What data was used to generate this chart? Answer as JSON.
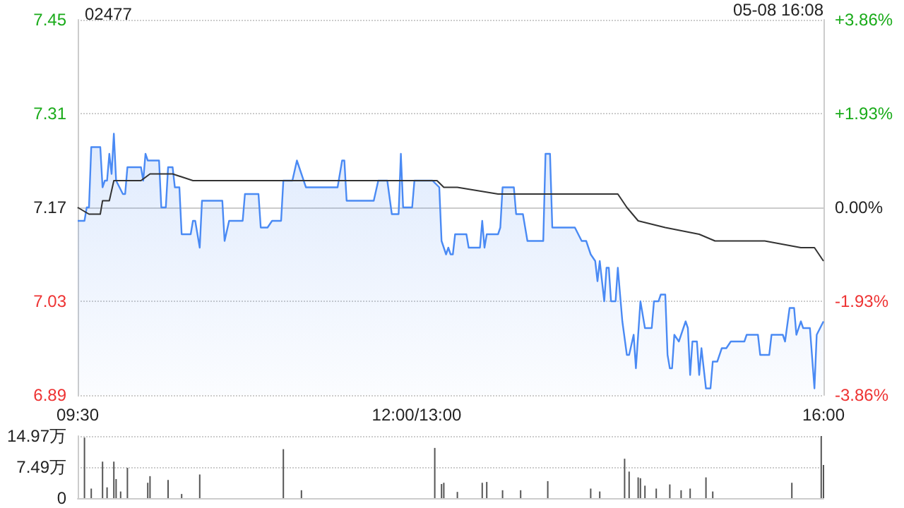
{
  "chart_data": [
    {
      "type": "area",
      "title": "02477",
      "annotations": [
        "05-08 16:08"
      ],
      "categories": [
        "09:30",
        null,
        null,
        null,
        null,
        null,
        null,
        null,
        null,
        null,
        null,
        null,
        null,
        null,
        null,
        null,
        null,
        null,
        null,
        null,
        null,
        null,
        null,
        null,
        null,
        null,
        null,
        null,
        null,
        null,
        null,
        null,
        null,
        null,
        null,
        null,
        null,
        null,
        null,
        null,
        null,
        null,
        null,
        null,
        null,
        null,
        null,
        null,
        null,
        null,
        null,
        null,
        null,
        null,
        null,
        null,
        null,
        null,
        null,
        null,
        null,
        null,
        null,
        null,
        null,
        null,
        null,
        null,
        null,
        null,
        null,
        null,
        null,
        null,
        null,
        null,
        null,
        null,
        null,
        null,
        null,
        null,
        null,
        null,
        null,
        null,
        null,
        null,
        null,
        null,
        null,
        null,
        null,
        null,
        null,
        null,
        null,
        null,
        null,
        null,
        null,
        null,
        null,
        null,
        null,
        null,
        null,
        null,
        null,
        null,
        null,
        null,
        null,
        null,
        null,
        null,
        null,
        null,
        null,
        null,
        null,
        null,
        null,
        null,
        null,
        null,
        null,
        null,
        null,
        null,
        null,
        null,
        null,
        null,
        null,
        null,
        null,
        null,
        null,
        null,
        null,
        null,
        null,
        null,
        null,
        null,
        null,
        null,
        null,
        null,
        "12:00/13:00",
        null,
        null,
        null,
        null,
        null,
        null,
        null,
        null,
        null,
        null,
        null,
        null,
        null,
        null,
        null,
        null,
        null,
        null,
        null,
        null,
        null,
        null,
        null,
        null,
        null,
        null,
        null,
        null,
        null,
        null,
        null,
        null,
        null,
        null,
        null,
        null,
        null,
        null,
        null,
        null,
        null,
        null,
        null,
        null,
        null,
        null,
        null,
        null,
        null,
        null,
        null,
        null,
        null,
        null,
        null,
        null,
        null,
        null,
        null,
        null,
        null,
        null,
        null,
        null,
        null,
        null,
        null,
        null,
        null,
        null,
        null,
        null,
        null,
        null,
        null,
        null,
        null,
        null,
        null,
        null,
        null,
        null,
        null,
        null,
        null,
        null,
        null,
        null,
        null,
        null,
        null,
        null,
        null,
        null,
        null,
        null,
        null,
        null,
        null,
        null,
        null,
        null,
        null,
        null,
        null,
        null,
        null,
        null,
        null,
        null,
        null,
        null,
        null,
        null,
        null,
        null,
        null,
        null,
        null,
        null,
        null,
        null,
        null,
        null,
        null,
        null,
        null,
        null,
        null,
        null,
        null,
        null,
        null,
        null,
        null,
        null,
        null,
        null,
        null,
        null,
        null,
        null,
        null,
        null,
        null,
        null,
        null,
        null,
        null,
        null,
        null,
        null,
        null,
        null,
        null,
        null,
        null,
        null,
        null,
        null,
        null,
        null,
        null,
        null,
        null,
        null,
        null,
        null,
        null,
        null,
        null,
        null,
        null,
        null,
        null,
        null,
        null,
        null,
        null,
        "16:00"
      ],
      "ylim": [
        6.89,
        7.45
      ],
      "yticks": [
        6.89,
        7.03,
        7.17,
        7.31,
        7.45
      ],
      "y2lim": [
        -3.86,
        3.86
      ],
      "y2ticks": [
        {
          "value": -3.86,
          "label": "-3.86%"
        },
        {
          "value": -1.93,
          "label": "-1.93%"
        },
        {
          "value": 0,
          "label": "0.00%"
        },
        {
          "value": 1.93,
          "label": "+1.93%"
        },
        {
          "value": 3.86,
          "label": "+3.86%"
        }
      ],
      "grid": true,
      "series": [
        {
          "color": "#4a8af4",
          "values": [
            7.15,
            null,
            null,
            7.15,
            7.17,
            7.17,
            7.26,
            null,
            null,
            null,
            7.26,
            7.2,
            7.21,
            7.21,
            7.25,
            7.22,
            7.28,
            7.21,
            null,
            null,
            7.19,
            7.19,
            7.23,
            null,
            null,
            null,
            null,
            null,
            7.23,
            7.21,
            7.25,
            7.24,
            null,
            null,
            null,
            null,
            7.24,
            7.17,
            null,
            7.17,
            7.23,
            null,
            7.23,
            7.2,
            null,
            7.2,
            7.13,
            null,
            null,
            null,
            7.13,
            7.15,
            7.15,
            null,
            7.11,
            7.18,
            null,
            null,
            null,
            null,
            null,
            null,
            null,
            null,
            7.18,
            7.12,
            null,
            7.15,
            null,
            null,
            null,
            null,
            null,
            7.15,
            7.19,
            null,
            null,
            null,
            null,
            null,
            7.19,
            7.14,
            null,
            null,
            7.14,
            null,
            7.15,
            null,
            null,
            null,
            7.15,
            7.21,
            null,
            null,
            null,
            7.21,
            null,
            7.24,
            null,
            7.22,
            null,
            7.2,
            null,
            null,
            null,
            null,
            null,
            null,
            null,
            null,
            null,
            null,
            null,
            null,
            null,
            7.2,
            null,
            7.24,
            7.24,
            7.18,
            null,
            null,
            null,
            null,
            null,
            null,
            null,
            null,
            null,
            null,
            null,
            7.18,
            null,
            7.21,
            null,
            null,
            null,
            7.21,
            null,
            7.16,
            null,
            null,
            7.16,
            7.25,
            7.17,
            null,
            null,
            null,
            7.17,
            7.21,
            7.21,
            null,
            null,
            null,
            null,
            null,
            null,
            7.21,
            null,
            null,
            7.2,
            7.12,
            null,
            7.1,
            7.11,
            7.1,
            7.1,
            7.13,
            null,
            null,
            null,
            null,
            7.13,
            7.11,
            null,
            null,
            null,
            null,
            7.11,
            7.15,
            7.11,
            7.13,
            null,
            null,
            null,
            null,
            7.13,
            7.14,
            7.2,
            null,
            null,
            null,
            null,
            7.2,
            7.16,
            null,
            null,
            7.16,
            null,
            7.12,
            null,
            null,
            null,
            null,
            null,
            null,
            7.12,
            7.25,
            null,
            7.25,
            7.14,
            null,
            null,
            null,
            null,
            null,
            null,
            null,
            null,
            null,
            7.14,
            null,
            null,
            7.12,
            null,
            7.12,
            null,
            7.1,
            null,
            7.09,
            7.06,
            7.09,
            null,
            7.03,
            7.08,
            7.08,
            7.03,
            null,
            7.03,
            7.08,
            null,
            7.0,
            null,
            6.95,
            6.95,
            null,
            6.98,
            6.93,
            null,
            7.03,
            null,
            6.99,
            null,
            null,
            6.99,
            7.03,
            null,
            7.03,
            7.04,
            null,
            7.04,
            6.95,
            6.93,
            6.93,
            6.98,
            null,
            6.97,
            6.98,
            null,
            7.0,
            6.99,
            6.92,
            6.97,
            6.97,
            6.97,
            6.92,
            6.96,
            null,
            6.9,
            null,
            6.9,
            6.94,
            null,
            6.94,
            null,
            6.96,
            null,
            6.96,
            null,
            6.97,
            null,
            null,
            null,
            null,
            null,
            6.97,
            6.98,
            null,
            null,
            null,
            null,
            6.98,
            6.95,
            null,
            null,
            null,
            6.95,
            6.98,
            null,
            null,
            null,
            null,
            6.98,
            6.97,
            null,
            7.02,
            null,
            7.02,
            6.98,
            null,
            7.0,
            6.99,
            null,
            null,
            6.99,
            null,
            6.9,
            6.98,
            null,
            null,
            7.0
          ]
        },
        {
          "type": "line",
          "color": "#333333",
          "values": [
            7.17,
            null,
            null,
            null,
            null,
            7.16,
            null,
            null,
            null,
            null,
            7.16,
            7.18,
            null,
            null,
            7.18,
            null,
            7.21,
            null,
            null,
            null,
            null,
            null,
            null,
            null,
            null,
            null,
            null,
            null,
            7.21,
            null,
            null,
            null,
            7.22,
            null,
            null,
            null,
            null,
            null,
            null,
            null,
            null,
            null,
            7.22,
            null,
            null,
            null,
            null,
            null,
            null,
            null,
            null,
            7.21,
            null,
            null,
            null,
            null,
            null,
            null,
            null,
            null,
            null,
            null,
            null,
            null,
            null,
            null,
            null,
            null,
            null,
            null,
            null,
            null,
            null,
            null,
            null,
            null,
            null,
            null,
            null,
            null,
            null,
            null,
            null,
            null,
            null,
            null,
            null,
            null,
            null,
            null,
            null,
            7.21,
            null,
            null,
            null,
            null,
            null,
            null,
            null,
            null,
            null,
            null,
            null,
            null,
            null,
            null,
            null,
            null,
            null,
            null,
            null,
            null,
            null,
            null,
            null,
            null,
            null,
            null,
            null,
            null,
            null,
            null,
            null,
            null,
            null,
            null,
            null,
            null,
            null,
            null,
            null,
            null,
            null,
            null,
            null,
            null,
            null,
            null,
            null,
            null,
            null,
            null,
            null,
            null,
            null,
            null,
            null,
            null,
            null,
            null,
            7.21,
            null,
            null,
            null,
            null,
            null,
            null,
            null,
            null,
            7.21,
            null,
            null,
            7.2,
            null,
            null,
            null,
            null,
            null,
            7.2,
            null,
            null,
            null,
            null,
            null,
            null,
            null,
            null,
            null,
            null,
            null,
            null,
            null,
            null,
            null,
            null,
            null,
            7.19,
            null,
            null,
            null,
            null,
            null,
            null,
            null,
            null,
            null,
            null,
            null,
            null,
            null,
            null,
            null,
            null,
            null,
            null,
            null,
            null,
            null,
            null,
            null,
            null,
            7.19,
            null,
            null,
            null,
            null,
            null,
            null,
            null,
            null,
            null,
            null,
            null,
            null,
            null,
            7.19,
            null,
            null,
            null,
            null,
            null,
            null,
            null,
            null,
            null,
            null,
            null,
            null,
            null,
            7.19,
            null,
            null,
            null,
            7.17,
            null,
            null,
            null,
            null,
            7.15,
            null,
            null,
            null,
            null,
            null,
            null,
            null,
            null,
            null,
            null,
            null,
            7.14,
            null,
            null,
            null,
            null,
            null,
            null,
            null,
            null,
            null,
            null,
            null,
            null,
            null,
            null,
            7.13,
            null,
            null,
            null,
            null,
            null,
            null,
            7.12,
            null,
            null,
            null,
            null,
            null,
            null,
            null,
            null,
            null,
            null,
            null,
            null,
            null,
            null,
            null,
            null,
            null,
            null,
            null,
            null,
            null,
            7.12,
            null,
            null,
            null,
            null,
            null,
            null,
            null,
            null,
            null,
            null,
            null,
            null,
            null,
            null,
            null,
            7.11,
            null,
            null,
            null,
            null,
            null,
            7.11,
            null,
            null,
            null,
            7.09
          ]
        }
      ]
    },
    {
      "type": "bar",
      "color": "#555555",
      "tick_labels": "y",
      "grid": "y",
      "categories": [
        null,
        null,
        null,
        null,
        null,
        null,
        null,
        null,
        null,
        null,
        null,
        null,
        null,
        null,
        null,
        null,
        null,
        null,
        null,
        null,
        null,
        null,
        null,
        null,
        null,
        null,
        null,
        null,
        null,
        null,
        null,
        null,
        null,
        null,
        null,
        null,
        null,
        null,
        null,
        null,
        null,
        null,
        null,
        null,
        null,
        null,
        null,
        null,
        null,
        null,
        null,
        null,
        null,
        null,
        null,
        null,
        null,
        null,
        null,
        null,
        null,
        null,
        null,
        null,
        null,
        null,
        null,
        null,
        null,
        null,
        null,
        null,
        null,
        null,
        null,
        null,
        null,
        null,
        null,
        null,
        null,
        null,
        null,
        null,
        null,
        null,
        null,
        null,
        null,
        null,
        null,
        null,
        null,
        null,
        null,
        null,
        null,
        null,
        null,
        null,
        null,
        null,
        null,
        null,
        null,
        null,
        null,
        null,
        null,
        null,
        null,
        null,
        null,
        null,
        null,
        null,
        null,
        null,
        null,
        null,
        null,
        null,
        null,
        null,
        null,
        null,
        null,
        null,
        null,
        null,
        null,
        null,
        null,
        null,
        null,
        null,
        null,
        null,
        null,
        null,
        null,
        null,
        null,
        null,
        null,
        null,
        null,
        null,
        null,
        null,
        null,
        null,
        null,
        null,
        null,
        null,
        null,
        null,
        null,
        null,
        null,
        null,
        null,
        null,
        null,
        null,
        null,
        null,
        null,
        null,
        null,
        null,
        null,
        null,
        null,
        null,
        null,
        null,
        null,
        null,
        null,
        null,
        null,
        null,
        null,
        null,
        null,
        null,
        null,
        null,
        null,
        null,
        null,
        null,
        null,
        null,
        null,
        null,
        null,
        null,
        null,
        null,
        null,
        null,
        null,
        null,
        null,
        null,
        null,
        null,
        null,
        null,
        null,
        null,
        null,
        null,
        null,
        null,
        null,
        null,
        null,
        null,
        null,
        null,
        null,
        null,
        null,
        null,
        null,
        null,
        null,
        null,
        null,
        null,
        null,
        null,
        null,
        null,
        null,
        null,
        null,
        null,
        null,
        null,
        null,
        null,
        null,
        null,
        null,
        null,
        null,
        null,
        null,
        null,
        null,
        null,
        null,
        null,
        null,
        null,
        null,
        null,
        null,
        null,
        null,
        null,
        null,
        null,
        null,
        null,
        null,
        null,
        null,
        null,
        null,
        null,
        null,
        null,
        null,
        null,
        null,
        null,
        null,
        null,
        null,
        null,
        null,
        null,
        null,
        null,
        null,
        null,
        null,
        null,
        null,
        null,
        null,
        null,
        null,
        null,
        null,
        null,
        null,
        null,
        null,
        null,
        null,
        null,
        null,
        null,
        null,
        null,
        null,
        null,
        null,
        null,
        null,
        null,
        null,
        null,
        null,
        null,
        null,
        null,
        null,
        null,
        null,
        null,
        null,
        null,
        null
      ],
      "ylim": [
        0,
        14.97
      ],
      "yticks": [
        {
          "value": 0,
          "label": "0"
        },
        {
          "value": 7.49,
          "label": "7.49万"
        },
        {
          "value": 14.97,
          "label": "14.97万"
        }
      ],
      "values": [
        null,
        null,
        null,
        14.6,
        null,
        null,
        2.3,
        null,
        null,
        null,
        null,
        8.8,
        null,
        2.6,
        null,
        null,
        8.8,
        4.6,
        null,
        1.6,
        null,
        null,
        7.3,
        null,
        null,
        null,
        null,
        null,
        null,
        null,
        null,
        3.7,
        5.3,
        null,
        null,
        null,
        null,
        null,
        null,
        null,
        4.4,
        null,
        null,
        null,
        null,
        null,
        1.0,
        null,
        null,
        null,
        null,
        null,
        null,
        null,
        5.7,
        null,
        null,
        null,
        null,
        null,
        null,
        null,
        null,
        null,
        null,
        null,
        null,
        null,
        null,
        null,
        null,
        null,
        null,
        null,
        null,
        null,
        null,
        null,
        null,
        null,
        null,
        null,
        null,
        null,
        null,
        null,
        null,
        null,
        null,
        null,
        null,
        11.8,
        null,
        null,
        null,
        null,
        null,
        null,
        null,
        1.9,
        null,
        null,
        null,
        null,
        null,
        null,
        null,
        null,
        null,
        null,
        null,
        null,
        null,
        null,
        null,
        null,
        null,
        null,
        null,
        null,
        null,
        null,
        null,
        null,
        null,
        null,
        null,
        null,
        null,
        null,
        null,
        null,
        null,
        null,
        null,
        null,
        null,
        null,
        null,
        null,
        null,
        null,
        null,
        null,
        null,
        null,
        null,
        null,
        null,
        null,
        null,
        null,
        null,
        null,
        null,
        null,
        null,
        null,
        12.1,
        null,
        null,
        3.4,
        3.7,
        null,
        null,
        null,
        null,
        null,
        1.5,
        null,
        null,
        null,
        null,
        null,
        null,
        null,
        null,
        null,
        null,
        3.7,
        null,
        3.9,
        null,
        null,
        null,
        null,
        null,
        null,
        1.9,
        null,
        null,
        null,
        null,
        null,
        null,
        null,
        1.9,
        null,
        null,
        null,
        null,
        null,
        null,
        null,
        null,
        null,
        null,
        null,
        4.1,
        null,
        null,
        null,
        null,
        null,
        null,
        null,
        null,
        null,
        null,
        null,
        null,
        null,
        null,
        null,
        null,
        null,
        null,
        2.3,
        null,
        null,
        null,
        1.6,
        null,
        null,
        null,
        null,
        null,
        null,
        null,
        null,
        null,
        null,
        9.5,
        null,
        6.4,
        null,
        null,
        null,
        5.0,
        4.8,
        null,
        3.0,
        null,
        null,
        null,
        null,
        2.3,
        null,
        null,
        null,
        null,
        null,
        3.3,
        null,
        null,
        null,
        null,
        1.9,
        null,
        null,
        null,
        2.3,
        null,
        null,
        null,
        null,
        null,
        null,
        5.0,
        null,
        null,
        1.6,
        null,
        null,
        null,
        null,
        null,
        null,
        null,
        null,
        null,
        null,
        null,
        null,
        null,
        null,
        null,
        null,
        null,
        null,
        null,
        null,
        null,
        null,
        null,
        null,
        null,
        null,
        null,
        null,
        null,
        null,
        null,
        null,
        null,
        null,
        3.7,
        null,
        null,
        null,
        null,
        null,
        null,
        null,
        null,
        null,
        null,
        null,
        null,
        14.97,
        8.0
      ]
    }
  ]
}
